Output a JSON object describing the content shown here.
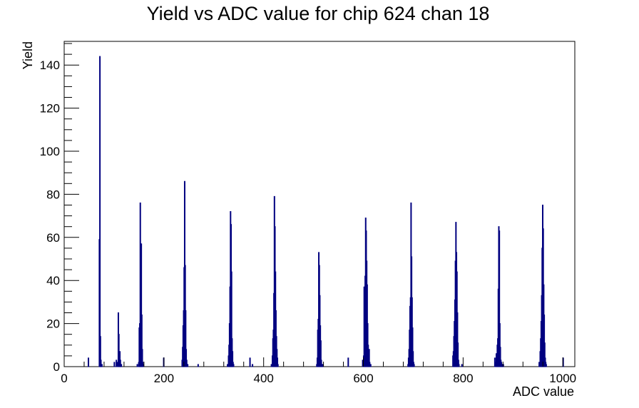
{
  "chart_data": {
    "type": "bar",
    "title": "Yield vs ADC value for chip 624 chan 18",
    "xlabel": "ADC value",
    "ylabel": "Yield",
    "xlim": [
      0,
      1024
    ],
    "ylim": [
      0,
      151
    ],
    "xticks": [
      0,
      200,
      400,
      600,
      800,
      1000
    ],
    "yticks": [
      0,
      20,
      40,
      60,
      80,
      100,
      120,
      140
    ],
    "line_color": "#000080",
    "grid": false,
    "legend": "none",
    "series": [
      {
        "x": [
          48,
          70,
          71,
          72,
          73,
          74,
          75,
          100,
          104,
          106,
          108,
          109,
          110,
          111,
          112,
          113,
          114,
          146,
          149,
          150,
          151,
          152,
          153,
          154,
          155,
          156,
          157,
          158,
          199,
          236,
          237,
          238,
          239,
          240,
          241,
          242,
          243,
          244,
          245,
          246,
          247,
          268,
          327,
          329,
          330,
          331,
          332,
          333,
          334,
          335,
          336,
          337,
          338,
          339,
          372,
          377,
          415,
          417,
          418,
          419,
          420,
          421,
          422,
          423,
          424,
          425,
          426,
          427,
          428,
          506,
          507,
          508,
          509,
          510,
          511,
          512,
          513,
          514,
          515,
          516,
          517,
          518,
          569,
          598,
          600,
          601,
          602,
          603,
          604,
          605,
          606,
          607,
          608,
          609,
          610,
          611,
          612,
          613,
          614,
          689,
          690,
          691,
          692,
          693,
          694,
          695,
          696,
          697,
          698,
          699,
          700,
          701,
          779,
          780,
          781,
          782,
          783,
          784,
          785,
          786,
          787,
          788,
          789,
          790,
          791,
          797,
          863,
          865,
          866,
          867,
          868,
          869,
          870,
          871,
          872,
          873,
          874,
          875,
          876,
          877,
          878,
          879,
          880,
          952,
          954,
          955,
          956,
          957,
          958,
          959,
          960,
          961,
          962,
          963,
          964,
          965,
          966,
          1000
        ],
        "y": [
          4,
          59,
          144,
          14,
          3,
          1,
          1,
          2,
          3,
          2,
          25,
          15,
          3,
          7,
          3,
          1,
          1,
          1,
          2,
          18,
          20,
          76,
          45,
          57,
          24,
          8,
          2,
          1,
          4,
          3,
          9,
          19,
          26,
          46,
          86,
          47,
          26,
          8,
          3,
          1,
          1,
          1,
          1,
          5,
          10,
          20,
          37,
          72,
          66,
          44,
          13,
          7,
          2,
          1,
          4,
          1,
          1,
          5,
          13,
          17,
          34,
          79,
          65,
          44,
          26,
          14,
          8,
          4,
          1,
          1,
          4,
          17,
          22,
          53,
          47,
          33,
          19,
          12,
          3,
          1,
          1,
          1,
          4,
          3,
          5,
          37,
          9,
          42,
          69,
          63,
          49,
          38,
          20,
          10,
          3,
          8,
          2,
          1,
          1,
          1,
          4,
          8,
          17,
          28,
          32,
          76,
          51,
          32,
          18,
          7,
          2,
          1,
          5,
          7,
          14,
          21,
          31,
          49,
          67,
          53,
          44,
          25,
          11,
          3,
          1,
          1,
          4,
          2,
          6,
          6,
          10,
          13,
          36,
          65,
          63,
          20,
          9,
          3,
          2,
          1,
          1,
          1,
          1,
          2,
          7,
          13,
          21,
          33,
          55,
          75,
          64,
          38,
          24,
          11,
          4,
          2,
          1,
          4
        ]
      }
    ]
  }
}
